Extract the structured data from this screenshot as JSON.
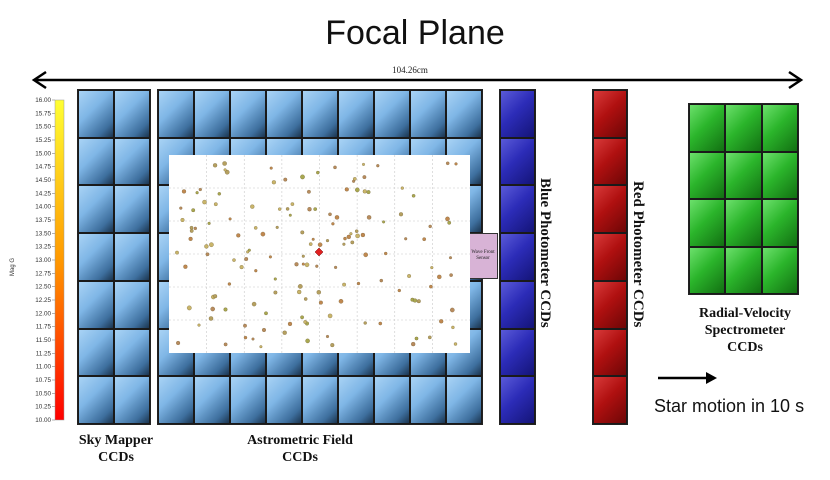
{
  "title": "Focal Plane",
  "width_label": "104.26cm",
  "magnitude_scale": {
    "axis_label": "Mag G",
    "ticks": [
      "16.00",
      "15.75",
      "15.50",
      "15.25",
      "15.00",
      "14.75",
      "14.50",
      "14.25",
      "14.00",
      "13.75",
      "13.50",
      "13.25",
      "13.00",
      "12.75",
      "12.50",
      "12.25",
      "12.00",
      "11.75",
      "11.50",
      "11.25",
      "11.00",
      "10.75",
      "10.50",
      "10.25",
      "10.00"
    ],
    "colors": [
      "#ffff33",
      "#ff9900",
      "#ff0000"
    ]
  },
  "groups": {
    "sky_mapper": "Sky Mapper\nCCDs",
    "astrometric": "Astrometric  Field\nCCDs",
    "blue": "Blue Photometer CCDs",
    "red": "Red Photometer CCDs",
    "rvs": "Radial-Velocity\nSpectrometer\nCCDs"
  },
  "wave_front_sensor": "Wave Front Sensor",
  "motion_label": "Star motion in 10 s",
  "colors": {
    "sky_blue": "#7fb6e6",
    "blue_photometer": "#2c2cb8",
    "red_photometer": "#b01010",
    "rvs_green": "#2bb52b",
    "wfs": "#d8b3d6",
    "target_star": "#e02020"
  }
}
